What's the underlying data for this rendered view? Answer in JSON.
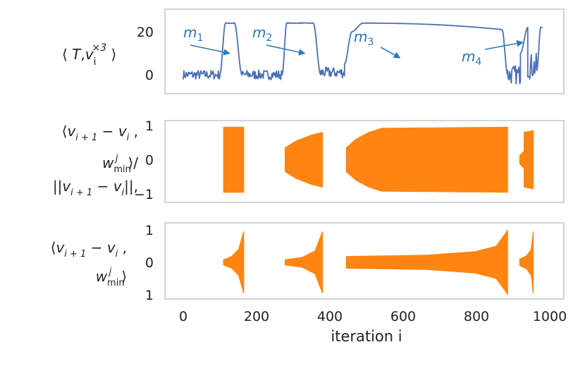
{
  "chart_data": [
    {
      "type": "line",
      "ylabel": "⟨ T,v_i^{×3} ⟩",
      "ylabel_parts": [
        "⟨ ",
        "T",
        ",",
        "v",
        "i",
        "×3",
        " ⟩"
      ],
      "ytick_labels": [
        "20",
        "0"
      ],
      "ylim": [
        -5,
        28
      ],
      "series_color": "#4a6fb5",
      "annotation_color": "#2a7bbd",
      "annotations": [
        {
          "base": "m",
          "sub": "1",
          "target_x": 125,
          "target_y": 10
        },
        {
          "base": "m",
          "sub": "2",
          "target_x": 330,
          "target_y": 10
        },
        {
          "base": "m",
          "sub": "3",
          "target_x": 590,
          "target_y": 8
        },
        {
          "base": "m",
          "sub": "4",
          "target_x": 925,
          "target_y": 15
        }
      ],
      "segments": [
        {
          "x0": 0,
          "x1": 100,
          "kind": "noise",
          "level": 0,
          "amp": 2.2
        },
        {
          "x0": 100,
          "x1": 115,
          "kind": "rise",
          "from": 0,
          "to": 24
        },
        {
          "x0": 115,
          "x1": 140,
          "kind": "flat",
          "level": 24
        },
        {
          "x0": 140,
          "x1": 160,
          "kind": "drop",
          "from": 24,
          "to": 0
        },
        {
          "x0": 160,
          "x1": 270,
          "kind": "noise",
          "level": 0,
          "amp": 2.2
        },
        {
          "x0": 270,
          "x1": 282,
          "kind": "rise",
          "from": 0,
          "to": 24
        },
        {
          "x0": 282,
          "x1": 355,
          "kind": "flat",
          "level": 24
        },
        {
          "x0": 355,
          "x1": 375,
          "kind": "drop",
          "from": 24,
          "to": 0
        },
        {
          "x0": 375,
          "x1": 440,
          "kind": "noise",
          "level": 1,
          "amp": 2.5
        },
        {
          "x0": 440,
          "x1": 460,
          "kind": "rise",
          "from": 5,
          "to": 20
        },
        {
          "x0": 460,
          "x1": 490,
          "kind": "rise",
          "from": 20,
          "to": 24
        },
        {
          "x0": 490,
          "x1": 870,
          "kind": "decay",
          "from": 24,
          "to": 21
        },
        {
          "x0": 870,
          "x1": 885,
          "kind": "drop",
          "from": 21,
          "to": 0
        },
        {
          "x0": 885,
          "x1": 920,
          "kind": "noise",
          "level": 0,
          "amp": 4.5
        },
        {
          "x0": 920,
          "x1": 940,
          "kind": "rise",
          "from": 10,
          "to": 22
        },
        {
          "x0": 940,
          "x1": 965,
          "kind": "noise",
          "level": 4,
          "amp": 6
        },
        {
          "x0": 965,
          "x1": 975,
          "kind": "rise",
          "from": 2,
          "to": 22
        },
        {
          "x0": 975,
          "x1": 980,
          "kind": "flat",
          "level": 22
        }
      ]
    },
    {
      "type": "area",
      "ylabel_lines": [
        {
          "parts": [
            "⟨",
            "v",
            "i + 1",
            " − ",
            "v",
            "i",
            " ,"
          ]
        },
        {
          "parts": [
            "w",
            "min",
            "j",
            "⟩/"
          ]
        },
        {
          "parts": [
            "||",
            "v",
            "i + 1",
            " − ",
            "v",
            "i",
            "||,"
          ]
        }
      ],
      "ytick_labels": [
        "1",
        "0",
        "−1"
      ],
      "ylim": [
        -1,
        1
      ],
      "color": "#ff8512",
      "bursts": [
        {
          "x0": 110,
          "x1": 165,
          "profile": [
            [
              0,
              0.95
            ],
            [
              1,
              0.95
            ]
          ]
        },
        {
          "x0": 278,
          "x1": 380,
          "profile": [
            [
              0,
              0.35
            ],
            [
              0.3,
              0.55
            ],
            [
              0.7,
              0.72
            ],
            [
              1,
              0.8
            ]
          ]
        },
        {
          "x0": 445,
          "x1": 885,
          "profile": [
            [
              0,
              0.35
            ],
            [
              0.06,
              0.6
            ],
            [
              0.14,
              0.8
            ],
            [
              0.22,
              0.92
            ],
            [
              1,
              0.95
            ]
          ]
        },
        {
          "x0": 918,
          "x1": 930,
          "profile": [
            [
              0,
              0.12
            ],
            [
              1,
              0.25
            ]
          ]
        },
        {
          "x0": 930,
          "x1": 955,
          "profile": [
            [
              0,
              0.8
            ],
            [
              1,
              0.85
            ]
          ]
        }
      ]
    },
    {
      "type": "area",
      "ylabel_lines": [
        {
          "parts": [
            "⟨",
            "v",
            "i + 1",
            " − ",
            "v",
            "i",
            " ,"
          ]
        },
        {
          "parts": [
            "w",
            "min",
            "j",
            "⟩"
          ]
        }
      ],
      "ytick_labels": [
        "1",
        "0",
        "1"
      ],
      "ylim": [
        -1,
        1
      ],
      "color": "#ff8512",
      "bursts": [
        {
          "x0": 110,
          "x1": 165,
          "profile": [
            [
              0,
              0.08
            ],
            [
              0.4,
              0.18
            ],
            [
              0.75,
              0.4
            ],
            [
              1,
              0.95
            ]
          ]
        },
        {
          "x0": 278,
          "x1": 380,
          "profile": [
            [
              0,
              0.08
            ],
            [
              0.45,
              0.15
            ],
            [
              0.8,
              0.35
            ],
            [
              1,
              0.95
            ]
          ]
        },
        {
          "x0": 445,
          "x1": 885,
          "profile": [
            [
              0,
              0.18
            ],
            [
              0.5,
              0.22
            ],
            [
              0.8,
              0.33
            ],
            [
              0.93,
              0.5
            ],
            [
              1,
              0.98
            ]
          ]
        },
        {
          "x0": 918,
          "x1": 955,
          "profile": [
            [
              0,
              0.1
            ],
            [
              0.5,
              0.2
            ],
            [
              0.85,
              0.4
            ],
            [
              1,
              0.95
            ]
          ]
        }
      ]
    }
  ],
  "x_axis": {
    "label": "iteration i",
    "xlim": [
      0,
      1000
    ],
    "ticks": [
      0,
      200,
      400,
      600,
      800,
      1000
    ],
    "tick_labels": [
      "0",
      "200",
      "400",
      "600",
      "800",
      "1000"
    ]
  }
}
